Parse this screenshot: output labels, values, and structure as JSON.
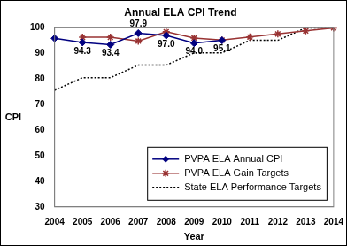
{
  "chart_data": {
    "type": "line",
    "title": "Annual ELA CPI Trend",
    "x_label": "Year",
    "y_label": "CPI",
    "categories": [
      "2004",
      "2005",
      "2006",
      "2007",
      "2008",
      "2009",
      "2010",
      "2011",
      "2012",
      "2013",
      "2014"
    ],
    "series": [
      {
        "name": "PVPA ELA Annual CPI",
        "color": "#000080",
        "marker": "diamond",
        "line_style": "solid",
        "values": [
          95.9,
          94.3,
          93.4,
          97.9,
          97.0,
          94.0,
          95.1,
          null,
          null,
          null,
          null
        ],
        "data_labels": true,
        "value_labels": [
          null,
          "94.3",
          "93.4",
          "97.9",
          "97.0",
          "94.0",
          "95.1",
          null,
          null,
          null,
          null
        ]
      },
      {
        "name": "PVPA ELA Gain Targets",
        "color": "#993333",
        "marker": "asterisk",
        "line_style": "solid",
        "values": [
          null,
          96.3,
          96.3,
          94.8,
          98.5,
          96.0,
          95.2,
          96.4,
          97.6,
          98.8,
          100
        ]
      },
      {
        "name": "State ELA Performance Targets",
        "color": "#000000",
        "marker": "none",
        "line_style": "dotted",
        "values": [
          75.6,
          80.5,
          80.5,
          85.4,
          85.4,
          90.2,
          90.2,
          95.1,
          95.1,
          100,
          100
        ]
      }
    ],
    "ylim": [
      30,
      100
    ],
    "yticks": [
      30,
      40,
      50,
      60,
      70,
      80,
      90,
      100
    ],
    "grid": false,
    "legend": "lower right"
  }
}
